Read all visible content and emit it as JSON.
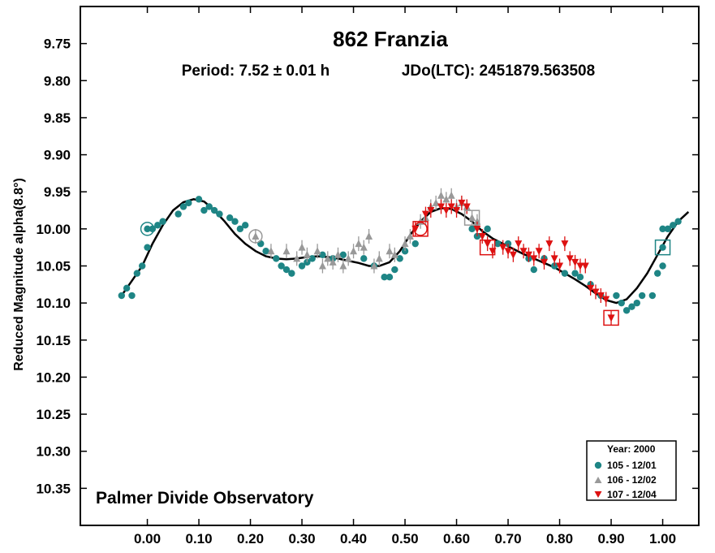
{
  "chart_data": {
    "type": "scatter",
    "title": "862 Franzia",
    "period_text": "Period: 7.52 ± 0.01 h",
    "jdo_text": "JDo(LTC): 2451879.563508",
    "ylabel": "Reduced Magnitude alpha(8.8°)",
    "xlabel": "",
    "footer": "Palmer Divide Observatory",
    "xlim": [
      -0.13,
      1.07
    ],
    "ylim": [
      9.7,
      10.4
    ],
    "y_inverted": true,
    "x_ticks": [
      0.0,
      0.1,
      0.2,
      0.3,
      0.4,
      0.5,
      0.6,
      0.7,
      0.8,
      0.9,
      1.0
    ],
    "x_tick_labels": [
      "0.00",
      "0.10",
      "0.20",
      "0.30",
      "0.40",
      "0.50",
      "0.60",
      "0.70",
      "0.80",
      "0.90",
      "1.00"
    ],
    "y_ticks": [
      9.75,
      9.8,
      9.85,
      9.9,
      9.95,
      10.0,
      10.05,
      10.1,
      10.15,
      10.2,
      10.25,
      10.3,
      10.35
    ],
    "y_tick_labels": [
      "9.75",
      "9.80",
      "9.85",
      "9.90",
      "9.95",
      "10.00",
      "10.05",
      "10.10",
      "10.15",
      "10.20",
      "10.25",
      "10.30",
      "10.35"
    ],
    "grid": false,
    "legend": {
      "title": "Year: 2000",
      "position": "bottom-right",
      "entries": [
        "105 - 12/01",
        "106 - 12/02",
        "107 - 12/04"
      ]
    },
    "colors": {
      "s105": "#1e8585",
      "s106": "#999999",
      "s107": "#dd1111",
      "curve": "#000000"
    },
    "series": [
      {
        "name": "105 - 12/01",
        "marker": "circle",
        "points": [
          [
            -0.05,
            10.09
          ],
          [
            -0.04,
            10.08
          ],
          [
            -0.03,
            10.09
          ],
          [
            -0.02,
            10.06
          ],
          [
            -0.01,
            10.05
          ],
          [
            0.0,
            10.025
          ],
          [
            0.0,
            10.0
          ],
          [
            0.01,
            10.0
          ],
          [
            0.02,
            9.995
          ],
          [
            0.03,
            9.99
          ],
          [
            0.06,
            9.98
          ],
          [
            0.07,
            9.97
          ],
          [
            0.08,
            9.965
          ],
          [
            0.1,
            9.96
          ],
          [
            0.11,
            9.975
          ],
          [
            0.12,
            9.97
          ],
          [
            0.13,
            9.975
          ],
          [
            0.14,
            9.98
          ],
          [
            0.16,
            9.985
          ],
          [
            0.17,
            9.99
          ],
          [
            0.18,
            10.0
          ],
          [
            0.19,
            9.995
          ],
          [
            0.22,
            10.02
          ],
          [
            0.23,
            10.03
          ],
          [
            0.25,
            10.04
          ],
          [
            0.26,
            10.05
          ],
          [
            0.27,
            10.055
          ],
          [
            0.28,
            10.06
          ],
          [
            0.3,
            10.05
          ],
          [
            0.31,
            10.045
          ],
          [
            0.32,
            10.04
          ],
          [
            0.34,
            10.035
          ],
          [
            0.36,
            10.04
          ],
          [
            0.38,
            10.035
          ],
          [
            0.42,
            10.04
          ],
          [
            0.44,
            10.05
          ],
          [
            0.46,
            10.065
          ],
          [
            0.47,
            10.065
          ],
          [
            0.48,
            10.055
          ],
          [
            0.49,
            10.04
          ],
          [
            0.5,
            10.03
          ],
          [
            0.52,
            10.02
          ],
          [
            0.63,
            10.0
          ],
          [
            0.64,
            10.01
          ],
          [
            0.66,
            10.0
          ],
          [
            0.68,
            10.02
          ],
          [
            0.7,
            10.02
          ],
          [
            0.74,
            10.04
          ],
          [
            0.75,
            10.055
          ],
          [
            0.77,
            10.04
          ],
          [
            0.79,
            10.05
          ],
          [
            0.81,
            10.06
          ],
          [
            0.83,
            10.06
          ],
          [
            0.84,
            10.065
          ],
          [
            0.86,
            10.075
          ],
          [
            0.88,
            10.09
          ],
          [
            0.91,
            10.09
          ],
          [
            0.92,
            10.1
          ],
          [
            0.93,
            10.11
          ],
          [
            0.94,
            10.105
          ],
          [
            0.95,
            10.1
          ],
          [
            0.96,
            10.09
          ],
          [
            0.98,
            10.09
          ],
          [
            0.99,
            10.06
          ],
          [
            1.0,
            10.05
          ],
          [
            1.0,
            10.025
          ],
          [
            1.0,
            10.0
          ],
          [
            1.01,
            10.0
          ],
          [
            1.02,
            9.995
          ],
          [
            1.03,
            9.99
          ]
        ]
      },
      {
        "name": "106 - 12/02",
        "marker": "triangle",
        "points": [
          [
            0.21,
            10.01
          ],
          [
            0.24,
            10.03
          ],
          [
            0.27,
            10.03
          ],
          [
            0.29,
            10.04
          ],
          [
            0.3,
            10.025
          ],
          [
            0.31,
            10.035
          ],
          [
            0.33,
            10.03
          ],
          [
            0.34,
            10.05
          ],
          [
            0.35,
            10.04
          ],
          [
            0.36,
            10.045
          ],
          [
            0.37,
            10.035
          ],
          [
            0.38,
            10.05
          ],
          [
            0.39,
            10.04
          ],
          [
            0.4,
            10.03
          ],
          [
            0.41,
            10.02
          ],
          [
            0.42,
            10.025
          ],
          [
            0.43,
            10.01
          ],
          [
            0.44,
            10.05
          ],
          [
            0.45,
            10.04
          ],
          [
            0.47,
            10.03
          ],
          [
            0.48,
            10.035
          ],
          [
            0.5,
            10.02
          ],
          [
            0.51,
            10.01
          ],
          [
            0.53,
            9.99
          ],
          [
            0.54,
            9.985
          ],
          [
            0.55,
            9.97
          ],
          [
            0.56,
            9.965
          ],
          [
            0.57,
            9.955
          ],
          [
            0.58,
            9.96
          ],
          [
            0.59,
            9.955
          ],
          [
            0.6,
            9.97
          ],
          [
            0.61,
            9.965
          ],
          [
            0.62,
            9.97
          ],
          [
            0.63,
            9.985
          ],
          [
            0.64,
            9.99
          ]
        ]
      },
      {
        "name": "107 - 12/04",
        "marker": "triangle-down",
        "points": [
          [
            0.52,
            10.0
          ],
          [
            0.54,
            9.98
          ],
          [
            0.55,
            9.975
          ],
          [
            0.57,
            9.97
          ],
          [
            0.58,
            9.975
          ],
          [
            0.59,
            9.97
          ],
          [
            0.6,
            9.975
          ],
          [
            0.61,
            9.965
          ],
          [
            0.62,
            9.97
          ],
          [
            0.64,
            10.0
          ],
          [
            0.65,
            10.01
          ],
          [
            0.66,
            10.02
          ],
          [
            0.67,
            10.03
          ],
          [
            0.69,
            10.025
          ],
          [
            0.7,
            10.03
          ],
          [
            0.71,
            10.035
          ],
          [
            0.72,
            10.02
          ],
          [
            0.73,
            10.03
          ],
          [
            0.74,
            10.035
          ],
          [
            0.75,
            10.04
          ],
          [
            0.76,
            10.03
          ],
          [
            0.77,
            10.045
          ],
          [
            0.78,
            10.02
          ],
          [
            0.79,
            10.04
          ],
          [
            0.8,
            10.05
          ],
          [
            0.81,
            10.02
          ],
          [
            0.82,
            10.04
          ],
          [
            0.83,
            10.045
          ],
          [
            0.84,
            10.05
          ],
          [
            0.85,
            10.05
          ],
          [
            0.86,
            10.08
          ],
          [
            0.87,
            10.085
          ],
          [
            0.88,
            10.09
          ],
          [
            0.89,
            10.095
          ],
          [
            0.9,
            10.12
          ]
        ]
      }
    ],
    "open_markers": [
      {
        "series": "105 - 12/01",
        "shape": "circle",
        "x": 0.0,
        "y": 10.0
      },
      {
        "series": "106 - 12/02",
        "shape": "circle",
        "x": 0.21,
        "y": 10.01
      },
      {
        "series": "107 - 12/04",
        "shape": "circle",
        "x": 0.53,
        "y": 10.0
      },
      {
        "series": "107 - 12/04",
        "shape": "square",
        "x": 0.53,
        "y": 10.0
      },
      {
        "series": "106 - 12/02",
        "shape": "square",
        "x": 0.63,
        "y": 9.985
      },
      {
        "series": "107 - 12/04",
        "shape": "square",
        "x": 0.66,
        "y": 10.025
      },
      {
        "series": "107 - 12/04",
        "shape": "square",
        "x": 0.9,
        "y": 10.12
      },
      {
        "series": "105 - 12/01",
        "shape": "square",
        "x": 1.0,
        "y": 10.025
      }
    ],
    "fit_curve": [
      [
        -0.05,
        10.09
      ],
      [
        -0.03,
        10.07
      ],
      [
        -0.01,
        10.05
      ],
      [
        0.01,
        10.02
      ],
      [
        0.03,
        9.995
      ],
      [
        0.05,
        9.975
      ],
      [
        0.07,
        9.964
      ],
      [
        0.09,
        9.96
      ],
      [
        0.11,
        9.963
      ],
      [
        0.13,
        9.975
      ],
      [
        0.15,
        9.99
      ],
      [
        0.17,
        10.007
      ],
      [
        0.19,
        10.02
      ],
      [
        0.21,
        10.03
      ],
      [
        0.23,
        10.037
      ],
      [
        0.25,
        10.04
      ],
      [
        0.27,
        10.041
      ],
      [
        0.29,
        10.04
      ],
      [
        0.31,
        10.038
      ],
      [
        0.33,
        10.037
      ],
      [
        0.35,
        10.038
      ],
      [
        0.37,
        10.04
      ],
      [
        0.39,
        10.043
      ],
      [
        0.41,
        10.046
      ],
      [
        0.43,
        10.05
      ],
      [
        0.45,
        10.05
      ],
      [
        0.47,
        10.045
      ],
      [
        0.49,
        10.03
      ],
      [
        0.51,
        10.008
      ],
      [
        0.53,
        9.99
      ],
      [
        0.55,
        9.977
      ],
      [
        0.57,
        9.972
      ],
      [
        0.59,
        9.973
      ],
      [
        0.61,
        9.98
      ],
      [
        0.63,
        9.99
      ],
      [
        0.65,
        10.003
      ],
      [
        0.67,
        10.013
      ],
      [
        0.69,
        10.02
      ],
      [
        0.71,
        10.027
      ],
      [
        0.73,
        10.034
      ],
      [
        0.75,
        10.04
      ],
      [
        0.77,
        10.046
      ],
      [
        0.79,
        10.052
      ],
      [
        0.81,
        10.06
      ],
      [
        0.83,
        10.068
      ],
      [
        0.85,
        10.077
      ],
      [
        0.87,
        10.087
      ],
      [
        0.89,
        10.096
      ],
      [
        0.91,
        10.1
      ],
      [
        0.93,
        10.095
      ],
      [
        0.95,
        10.08
      ],
      [
        0.97,
        10.06
      ],
      [
        0.99,
        10.035
      ],
      [
        1.01,
        10.01
      ],
      [
        1.03,
        9.99
      ],
      [
        1.05,
        9.977
      ]
    ]
  }
}
